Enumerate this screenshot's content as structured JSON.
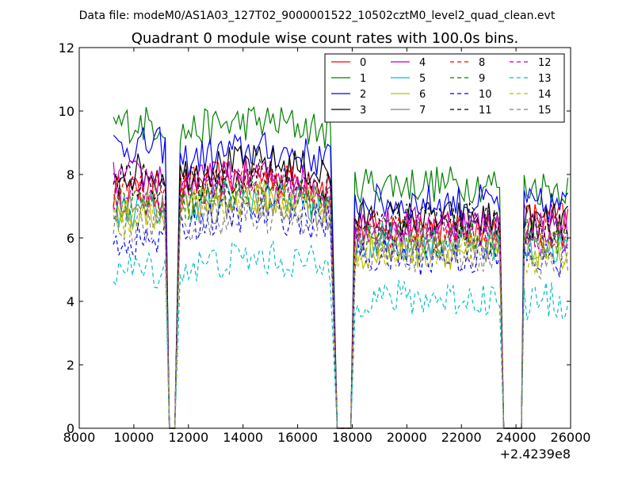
{
  "figure": {
    "suptitle": "Data file: modeM0/AS1A03_127T02_9000001522_10502cztM0_level2_quad_clean.evt"
  },
  "chart_data": {
    "type": "line",
    "title": "Quadrant 0 module wise count rates with 100.0s bins.",
    "xlabel": "",
    "ylabel": "",
    "x_offset_label": "+2.4239e8",
    "xlim": [
      8000,
      26000
    ],
    "ylim": [
      0,
      12
    ],
    "xticks": [
      8000,
      10000,
      12000,
      14000,
      16000,
      18000,
      20000,
      22000,
      24000,
      26000
    ],
    "yticks": [
      0,
      2,
      4,
      6,
      8,
      10,
      12
    ],
    "grid": false,
    "legend_position": "top-right",
    "legend_columns": 4,
    "segments": [
      [
        9250,
        11150
      ],
      [
        11700,
        17250
      ],
      [
        18100,
        23450
      ],
      [
        24300,
        25900
      ]
    ],
    "dropout_to_zero_at": [
      11300,
      11500,
      17450,
      17950,
      23550,
      24200
    ],
    "series": [
      {
        "name": "0",
        "color": "#ff0000",
        "dash": "solid",
        "levels": [
          7.4,
          7.6,
          6.3,
          6.6
        ]
      },
      {
        "name": "1",
        "color": "#008000",
        "dash": "solid",
        "levels": [
          9.6,
          9.3,
          7.7,
          7.6
        ]
      },
      {
        "name": "2",
        "color": "#0000ff",
        "dash": "solid",
        "levels": [
          8.9,
          8.4,
          7.1,
          7.0
        ]
      },
      {
        "name": "3",
        "color": "#000000",
        "dash": "solid",
        "levels": [
          8.1,
          8.0,
          6.6,
          6.5
        ]
      },
      {
        "name": "4",
        "color": "#bf00bf",
        "dash": "solid",
        "levels": [
          7.9,
          7.6,
          6.4,
          6.4
        ]
      },
      {
        "name": "5",
        "color": "#00bfbf",
        "dash": "solid",
        "levels": [
          6.9,
          7.0,
          5.9,
          5.7
        ]
      },
      {
        "name": "6",
        "color": "#bfbf00",
        "dash": "solid",
        "levels": [
          6.8,
          6.9,
          5.6,
          5.6
        ]
      },
      {
        "name": "7",
        "color": "#808080",
        "dash": "solid",
        "levels": [
          6.9,
          6.8,
          5.8,
          5.7
        ]
      },
      {
        "name": "8",
        "color": "#ff0000",
        "dash": "dashed",
        "levels": [
          7.5,
          7.4,
          6.2,
          6.2
        ]
      },
      {
        "name": "9",
        "color": "#008000",
        "dash": "dashed",
        "levels": [
          7.2,
          7.1,
          6.0,
          6.0
        ]
      },
      {
        "name": "10",
        "color": "#0000ff",
        "dash": "dashed",
        "levels": [
          5.9,
          6.4,
          5.4,
          5.3
        ]
      },
      {
        "name": "11",
        "color": "#000000",
        "dash": "dashed",
        "levels": [
          7.8,
          7.6,
          6.5,
          6.2
        ]
      },
      {
        "name": "12",
        "color": "#bf00bf",
        "dash": "dashed",
        "levels": [
          7.3,
          7.3,
          6.3,
          6.0
        ]
      },
      {
        "name": "13",
        "color": "#00bfbf",
        "dash": "dashed",
        "levels": [
          5.0,
          5.0,
          4.1,
          4.0
        ]
      },
      {
        "name": "14",
        "color": "#bfbf00",
        "dash": "dashed",
        "levels": [
          6.6,
          6.9,
          5.6,
          5.4
        ]
      },
      {
        "name": "15",
        "color": "#808080",
        "dash": "dashed",
        "levels": [
          6.4,
          6.4,
          5.5,
          5.3
        ]
      }
    ]
  }
}
